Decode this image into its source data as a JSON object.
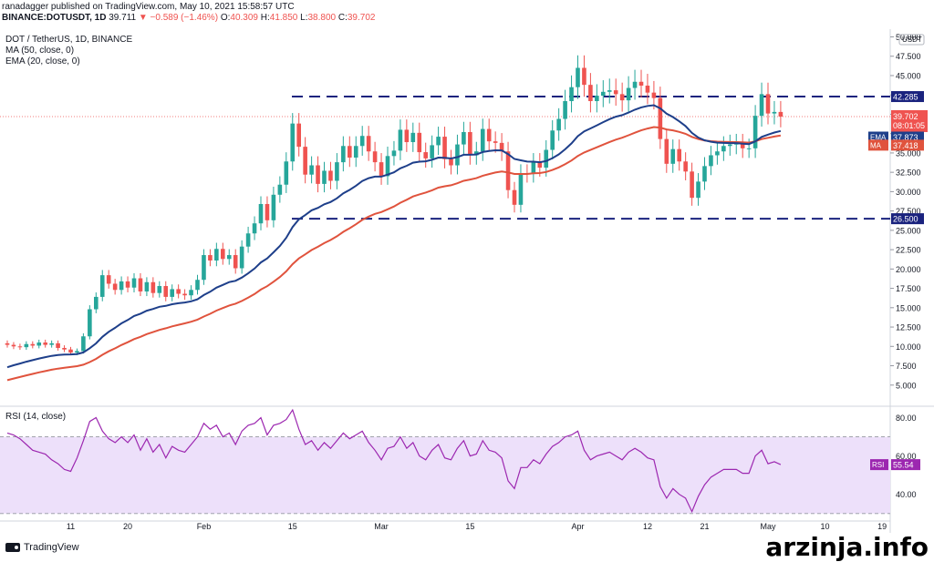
{
  "header": {
    "published": "ranadagger published on TradingView.com, May 10, 2021 15:58:57 UTC",
    "symbol": "BINANCE:DOTUSDT, 1D",
    "close_val": "39.711",
    "change": "▼ −0.589 (−1.46%)",
    "o_label": "O:",
    "o_val": "40.309",
    "h_label": "H:",
    "h_val": "41.850",
    "l_label": "L:",
    "l_val": "38.800",
    "c_label": "C:",
    "c_val": "39.702"
  },
  "legend": {
    "title": "DOT / TetherUS, 1D, BINANCE",
    "ma": "MA (50, close, 0)",
    "ema": "EMA (20, close, 0)",
    "rsi": "RSI (14, close)"
  },
  "footer": {
    "brand": "TradingView",
    "watermark": "arzinja.info"
  },
  "colors": {
    "up": "#26a69a",
    "down": "#ef5350",
    "ema": "#1e3f8a",
    "ma": "#e0533d",
    "rsi": "#9c27b0",
    "hline": "#1a237e",
    "rsi_band": "#ede0fa"
  },
  "chart_data": {
    "type": "candlestick",
    "title": "DOT / TetherUS, 1D, BINANCE",
    "currency": "USDT",
    "yticks": [
      "5.000",
      "7.500",
      "10.000",
      "12.500",
      "15.000",
      "17.500",
      "20.000",
      "22.500",
      "25.000",
      "27.500",
      "30.000",
      "32.500",
      "35.000",
      "37.500",
      "40.000",
      "42.500",
      "45.000",
      "47.500",
      "50.000"
    ],
    "ylim": [
      2.5,
      51
    ],
    "xticks": [
      {
        "label": "11",
        "i": 10
      },
      {
        "label": "20",
        "i": 19
      },
      {
        "label": "Feb",
        "i": 31
      },
      {
        "label": "15",
        "i": 45
      },
      {
        "label": "Mar",
        "i": 59
      },
      {
        "label": "15",
        "i": 73
      },
      {
        "label": "Apr",
        "i": 90
      },
      {
        "label": "12",
        "i": 101
      },
      {
        "label": "21",
        "i": 110
      },
      {
        "label": "May",
        "i": 120
      },
      {
        "label": "10",
        "i": 129
      },
      {
        "label": "19",
        "i": 138
      }
    ],
    "levels": [
      {
        "value": 42.285,
        "label": "42.285"
      },
      {
        "value": 26.5,
        "label": "26.500"
      }
    ],
    "price_labels": [
      {
        "text": "39.702",
        "sub": "08:01:05",
        "value": 39.702,
        "color": "#ef5350"
      },
      {
        "text": "37.873",
        "tag": "EMA",
        "value": 37.873,
        "color": "#1e3f8a"
      },
      {
        "text": "37.418",
        "tag": "MA",
        "value": 37.418,
        "color": "#e0533d"
      }
    ],
    "closes": [
      10.2,
      10.0,
      9.9,
      10.3,
      10.1,
      10.5,
      10.2,
      10.4,
      9.8,
      9.6,
      9.2,
      9.4,
      11.3,
      14.8,
      16.4,
      19.2,
      18.1,
      17.3,
      18.4,
      17.6,
      18.8,
      17.1,
      18.3,
      16.9,
      17.8,
      16.4,
      17.4,
      16.8,
      16.6,
      17.3,
      18.6,
      21.8,
      21.1,
      22.6,
      21.3,
      21.8,
      20.1,
      22.9,
      24.6,
      25.9,
      28.4,
      26.3,
      29.6,
      30.9,
      33.9,
      38.8,
      35.8,
      32.2,
      33.4,
      31.0,
      32.7,
      31.4,
      33.8,
      35.9,
      34.4,
      35.9,
      37.2,
      35.2,
      33.8,
      32.0,
      34.6,
      35.3,
      38.0,
      36.4,
      37.6,
      35.1,
      34.3,
      36.0,
      37.1,
      34.2,
      33.4,
      36.1,
      37.7,
      34.7,
      35.2,
      38.1,
      36.5,
      36.3,
      35.2,
      30.2,
      28.3,
      32.4,
      32.3,
      33.8,
      33.1,
      35.4,
      37.9,
      39.4,
      41.7,
      43.5,
      46.0,
      43.8,
      41.7,
      42.4,
      42.9,
      43.1,
      42.6,
      41.8,
      43.4,
      44.2,
      43.7,
      42.8,
      42.1,
      36.8,
      33.6,
      35.5,
      33.9,
      32.6,
      29.2,
      31.3,
      33.3,
      34.7,
      35.2,
      35.9,
      36.1,
      36.2,
      35.6,
      35.6,
      39.8,
      42.6,
      40.1,
      40.3,
      39.7
    ],
    "opens": [
      10.4,
      10.2,
      10.0,
      9.9,
      10.3,
      10.1,
      10.5,
      10.2,
      10.4,
      9.8,
      9.6,
      9.2,
      9.4,
      11.3,
      14.8,
      16.4,
      19.2,
      18.1,
      17.3,
      18.4,
      17.6,
      18.8,
      17.1,
      18.3,
      16.9,
      17.8,
      16.4,
      17.4,
      16.8,
      16.6,
      17.3,
      18.6,
      21.8,
      21.1,
      22.6,
      21.3,
      21.8,
      20.1,
      22.9,
      24.6,
      25.9,
      28.4,
      26.3,
      29.6,
      30.9,
      33.9,
      38.8,
      35.8,
      32.2,
      33.4,
      31.0,
      32.7,
      31.4,
      33.8,
      35.9,
      34.4,
      35.9,
      37.2,
      35.2,
      33.8,
      32.0,
      34.6,
      35.3,
      38.0,
      36.4,
      37.6,
      35.1,
      34.3,
      36.0,
      37.1,
      34.2,
      33.4,
      36.1,
      37.7,
      34.7,
      35.2,
      38.1,
      36.5,
      36.3,
      35.2,
      30.2,
      28.3,
      32.4,
      32.3,
      33.8,
      33.1,
      35.4,
      37.9,
      39.4,
      41.7,
      43.5,
      46.0,
      43.8,
      41.7,
      42.4,
      42.9,
      43.1,
      42.6,
      41.8,
      43.4,
      44.2,
      43.7,
      42.8,
      42.1,
      36.8,
      33.6,
      35.5,
      33.9,
      32.6,
      29.2,
      31.3,
      33.3,
      34.7,
      35.2,
      35.9,
      36.1,
      36.2,
      35.6,
      35.6,
      39.8,
      42.6,
      40.1,
      40.3
    ],
    "ema20_start": 7.0,
    "ma50_start": 5.4,
    "rsi": {
      "yticks": [
        "40.00",
        "60.00",
        "80.00"
      ],
      "ylim": [
        28,
        85
      ],
      "band": [
        30,
        70
      ],
      "last": "55.54",
      "values": [
        72,
        71,
        69,
        66,
        63,
        62,
        61,
        58,
        56,
        53,
        52,
        59,
        68,
        78,
        80,
        73,
        69,
        67,
        70,
        67,
        71,
        63,
        69,
        62,
        66,
        59,
        65,
        63,
        62,
        66,
        70,
        77,
        74,
        76,
        70,
        72,
        66,
        73,
        76,
        77,
        80,
        71,
        76,
        77,
        79,
        84,
        74,
        66,
        68,
        63,
        67,
        64,
        68,
        72,
        69,
        71,
        73,
        67,
        63,
        58,
        64,
        65,
        70,
        64,
        67,
        60,
        58,
        63,
        66,
        59,
        58,
        64,
        68,
        60,
        61,
        68,
        63,
        62,
        59,
        47,
        43,
        54,
        54,
        58,
        56,
        61,
        65,
        67,
        70,
        71,
        73,
        63,
        58,
        60,
        61,
        62,
        60,
        58,
        62,
        64,
        62,
        59,
        58,
        44,
        38,
        43,
        40,
        38,
        31,
        39,
        45,
        49,
        51,
        53,
        53,
        53,
        51,
        51,
        60,
        63,
        56,
        57,
        55.5
      ]
    }
  }
}
